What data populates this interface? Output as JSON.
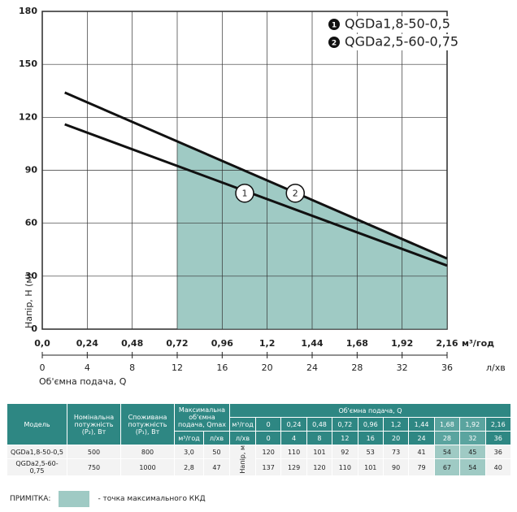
{
  "chart_data": {
    "type": "line",
    "y_label": "Напір, Н (м)",
    "x_label": "Об'ємна подача, Q",
    "x_unit": "м³/год",
    "x2_unit": "л/хв",
    "xlim": [
      0,
      2.16
    ],
    "xticks": [
      {
        "value": 0,
        "label": "0,0"
      },
      {
        "value": 0.24,
        "label": "0,24"
      },
      {
        "value": 0.48,
        "label": "0,48"
      },
      {
        "value": 0.72,
        "label": "0,72"
      },
      {
        "value": 0.96,
        "label": "0,96"
      },
      {
        "value": 1.2,
        "label": "1,2"
      },
      {
        "value": 1.44,
        "label": "1,44"
      },
      {
        "value": 1.68,
        "label": "1,68"
      },
      {
        "value": 1.92,
        "label": "1,92"
      },
      {
        "value": 2.16,
        "label": "2,16"
      }
    ],
    "x2lim": [
      0,
      36
    ],
    "x2ticks": [
      0,
      4,
      8,
      12,
      16,
      20,
      24,
      28,
      32,
      36
    ],
    "ylim": [
      0,
      180
    ],
    "yticks": [
      0,
      30,
      60,
      90,
      120,
      150,
      180
    ],
    "grid": true,
    "highlight_xlim": [
      0.72,
      2.16
    ],
    "highlight_color": "#9fcac4",
    "series": [
      {
        "name": "QGDa1,8-50-0,5",
        "marker": "1",
        "color": "#111111",
        "x": [
          0.12,
          2.16
        ],
        "values": [
          116,
          36
        ]
      },
      {
        "name": "QGDa2,5-60-0,75",
        "marker": "2",
        "color": "#111111",
        "x": [
          0.12,
          2.16
        ],
        "values": [
          134,
          40
        ]
      }
    ],
    "annotations": [
      {
        "text": "1",
        "x": 1.08,
        "y": 77
      },
      {
        "text": "2",
        "x": 1.35,
        "y": 77
      }
    ]
  },
  "table": {
    "header": {
      "model": "Модель",
      "p2": "Номінальна потужність (P₂), Вт",
      "p1": "Споживана потужність (P₁), Вт",
      "qmax": "Максимальна об'ємна подача, Qmax",
      "qmax_units": [
        "м³/год",
        "л/хв"
      ],
      "q": "Об'ємна подача, Q",
      "q_units": [
        "м³/год",
        "л/хв"
      ],
      "q_m3h": [
        "0",
        "0,24",
        "0,48",
        "0,72",
        "0,96",
        "1,2",
        "1,44",
        "1,68",
        "1,92",
        "2,16"
      ],
      "q_lmin": [
        0,
        4,
        8,
        12,
        16,
        20,
        24,
        28,
        32,
        36
      ],
      "head": "Напір, м"
    },
    "rows": [
      {
        "model": "QGDa1,8-50-0,5",
        "p2": 500,
        "p1": 800,
        "qmax_m3h": "3,0",
        "qmax_lmin": 50,
        "head": [
          120,
          110,
          101,
          92,
          53,
          73,
          41,
          54,
          45,
          36
        ]
      },
      {
        "model": "QGDa2,5-60-0,75",
        "p2": 750,
        "p1": 1000,
        "qmax_m3h": "2,8",
        "qmax_lmin": 47,
        "head": [
          137,
          129,
          120,
          110,
          101,
          90,
          79,
          67,
          54,
          40
        ]
      }
    ],
    "highlight_columns": [
      7,
      8
    ]
  },
  "note": {
    "label": "ПРИМІТКА:",
    "text": "- точка максимального ККД"
  }
}
